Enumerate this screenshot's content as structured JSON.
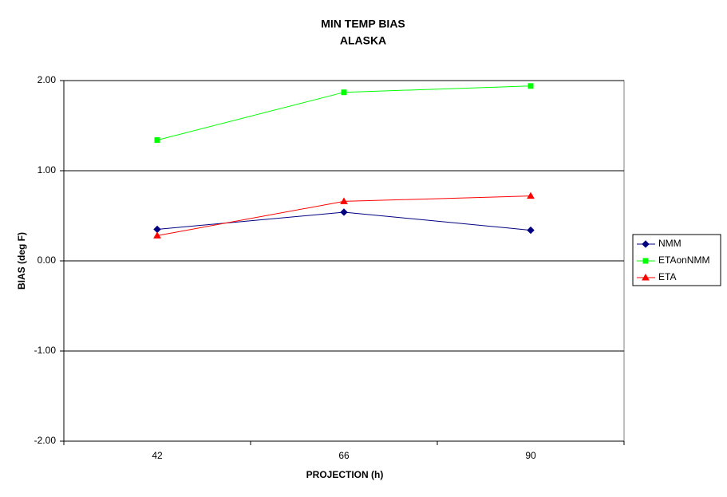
{
  "chart_data": {
    "type": "line",
    "title": "MIN TEMP BIAS",
    "subtitle": "ALASKA",
    "x_label": "PROJECTION (h)",
    "y_label": "BIAS (deg F)",
    "categories": [
      "42",
      "66",
      "90"
    ],
    "series": [
      {
        "name": "NMM",
        "color": "#000080",
        "marker": "diamond",
        "values": [
          0.35,
          0.54,
          0.34
        ]
      },
      {
        "name": "ETAonNMM",
        "color": "#00ff00",
        "marker": "square",
        "values": [
          1.34,
          1.87,
          1.94
        ]
      },
      {
        "name": "ETA",
        "color": "#ff0000",
        "marker": "triangle",
        "values": [
          0.28,
          0.66,
          0.72
        ]
      }
    ],
    "ylim": [
      -2,
      2
    ],
    "yticks": [
      {
        "value": -2,
        "label": "-2.00"
      },
      {
        "value": -1,
        "label": "-1.00"
      },
      {
        "value": 0,
        "label": "0.00"
      },
      {
        "value": 1,
        "label": "1.00"
      },
      {
        "value": 2,
        "label": "2.00"
      }
    ],
    "grid": true,
    "legend": "right"
  }
}
